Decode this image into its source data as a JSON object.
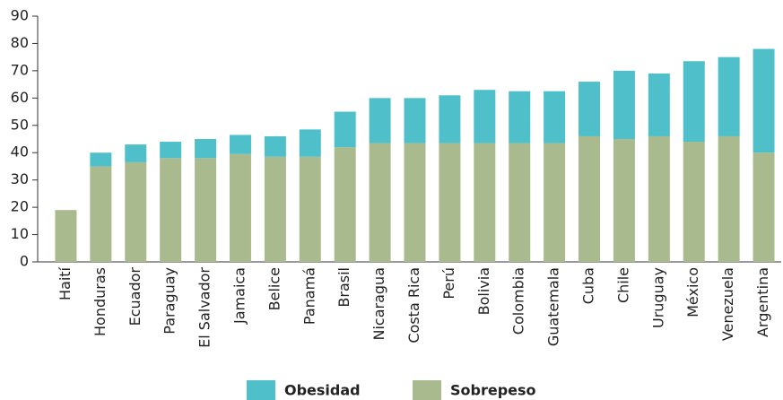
{
  "chart_data": {
    "type": "stacked_bar",
    "categories": [
      "Haití",
      "Honduras",
      "Ecuador",
      "Paraguay",
      "El Salvador",
      "Jamaica",
      "Belice",
      "Panamá",
      "Brasil",
      "Nicaragua",
      "Costa Rica",
      "Perú",
      "Bolivia",
      "Colombia",
      "Guatemala",
      "Cuba",
      "Chile",
      "Uruguay",
      "México",
      "Venezuela",
      "Argentina"
    ],
    "series": [
      {
        "name": "Sobrepeso",
        "color": "#a9bb8e",
        "values": [
          19,
          35,
          36.5,
          38,
          38,
          39.5,
          38.5,
          38.5,
          42,
          43.5,
          43.5,
          43.5,
          43.5,
          43.5,
          43.5,
          46,
          45,
          46,
          44,
          46,
          40
        ]
      },
      {
        "name": "Obesidad",
        "color": "#4fbfca",
        "values": [
          0,
          5,
          6.5,
          6,
          7,
          7,
          7.5,
          10,
          13,
          16.5,
          16.5,
          17.5,
          19.5,
          19,
          19,
          20,
          25,
          23,
          29.5,
          29,
          38
        ]
      }
    ],
    "legend_order": [
      "Obesidad",
      "Sobrepeso"
    ],
    "ylim": [
      0,
      90
    ],
    "yticks": [
      0,
      10,
      20,
      30,
      40,
      50,
      60,
      70,
      80,
      90
    ]
  }
}
